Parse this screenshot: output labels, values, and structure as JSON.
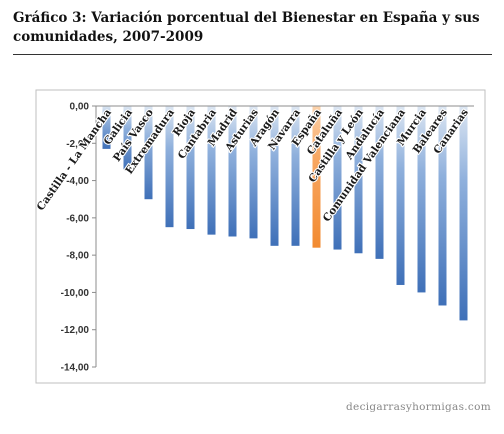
{
  "title": "Gráfico 3: Variación porcentual del Bienestar en España y sus comunidades, 2007-2009",
  "source": "decigarrasyhormigas.com",
  "chart_data": {
    "type": "bar",
    "title": "Gráfico 3: Variación porcentual del Bienestar en España y sus comunidades, 2007-2009",
    "xlabel": "",
    "ylabel": "",
    "categories": [
      "Castilla - La Mancha",
      "Galicia",
      "País Vasco",
      "Extremadura",
      "Rioja",
      "Cantabria",
      "Madrid",
      "Asturias",
      "Aragón",
      "Navarra",
      "España",
      "Cataluña",
      "Castilla y León",
      "Andalucía",
      "Comunidad Valenciana",
      "Murcia",
      "Baleares",
      "Canarias"
    ],
    "values": [
      -2.3,
      -3.4,
      -5.0,
      -6.5,
      -6.6,
      -6.9,
      -7.0,
      -7.1,
      -7.5,
      -7.5,
      -7.6,
      -7.7,
      -7.9,
      -8.2,
      -9.6,
      -10.0,
      -10.7,
      -11.5
    ],
    "ylim": [
      -14,
      0
    ],
    "yticks": [
      "0,00",
      "-2,00",
      "-4,00",
      "-6,00",
      "-8,00",
      "-10,00",
      "-12,00",
      "-14,00"
    ],
    "grid": false,
    "legend": "none",
    "colors": {
      "bar": "#4f81bd",
      "highlight": "#f79646",
      "highlight_category": "España"
    }
  }
}
